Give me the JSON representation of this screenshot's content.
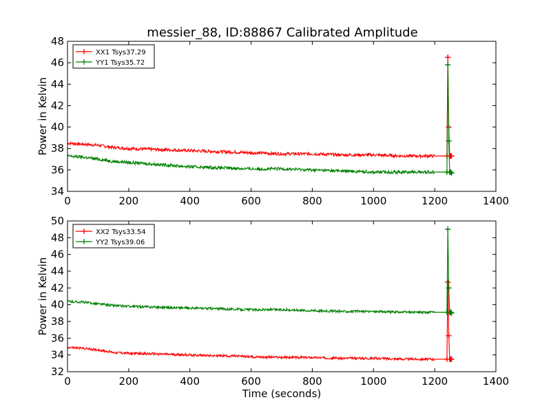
{
  "title": "messier_88, ID:88867 Calibrated Amplitude",
  "chart_data": [
    {
      "type": "line",
      "title": "messier_88, ID:88867 Calibrated Amplitude",
      "xlabel": "",
      "ylabel": "Power in Kelvin",
      "xlim": [
        0,
        1400
      ],
      "ylim": [
        34,
        48
      ],
      "xticks": [
        0,
        200,
        400,
        600,
        800,
        1000,
        1200,
        1400
      ],
      "yticks": [
        34,
        36,
        38,
        40,
        42,
        44,
        46,
        48
      ],
      "grid": false,
      "legend_position": "top-left",
      "series": [
        {
          "name": "XX1 Tsys37.29",
          "color": "#ff0000",
          "x": [
            0,
            50,
            100,
            150,
            200,
            300,
            400,
            500,
            600,
            700,
            800,
            900,
            1000,
            1100,
            1200,
            1240,
            1243,
            1246,
            1249,
            1252,
            1255
          ],
          "y": [
            38.5,
            38.4,
            38.3,
            38.1,
            38.0,
            37.9,
            37.8,
            37.7,
            37.6,
            37.5,
            37.5,
            37.4,
            37.4,
            37.3,
            37.3,
            37.3,
            46.5,
            40.0,
            37.3,
            37.3,
            37.3
          ]
        },
        {
          "name": "YY1 Tsys35.72",
          "color": "#008000",
          "x": [
            0,
            50,
            100,
            150,
            200,
            300,
            400,
            500,
            600,
            700,
            800,
            900,
            1000,
            1100,
            1200,
            1240,
            1243,
            1246,
            1249,
            1252,
            1255
          ],
          "y": [
            37.3,
            37.2,
            37.0,
            36.8,
            36.7,
            36.5,
            36.3,
            36.2,
            36.1,
            36.1,
            36.0,
            35.9,
            35.8,
            35.8,
            35.8,
            35.8,
            45.8,
            38.7,
            35.8,
            35.8,
            35.7
          ]
        }
      ]
    },
    {
      "type": "line",
      "title": "",
      "xlabel": "Time (seconds)",
      "ylabel": "Power in Kelvin",
      "xlim": [
        0,
        1400
      ],
      "ylim": [
        32,
        50
      ],
      "xticks": [
        0,
        200,
        400,
        600,
        800,
        1000,
        1200,
        1400
      ],
      "yticks": [
        32,
        34,
        36,
        38,
        40,
        42,
        44,
        46,
        48,
        50
      ],
      "grid": false,
      "legend_position": "top-left",
      "series": [
        {
          "name": "XX2 Tsys33.54",
          "color": "#ff0000",
          "x": [
            0,
            50,
            100,
            150,
            200,
            300,
            400,
            500,
            600,
            700,
            800,
            900,
            1000,
            1100,
            1200,
            1240,
            1243,
            1246,
            1249,
            1252,
            1255
          ],
          "y": [
            34.9,
            34.8,
            34.6,
            34.3,
            34.2,
            34.1,
            34.0,
            33.9,
            33.8,
            33.7,
            33.7,
            33.6,
            33.6,
            33.5,
            33.5,
            33.5,
            42.7,
            36.3,
            33.5,
            33.5,
            33.5
          ]
        },
        {
          "name": "YY2 Tsys39.06",
          "color": "#008000",
          "x": [
            0,
            50,
            100,
            150,
            200,
            300,
            400,
            500,
            600,
            700,
            800,
            900,
            1000,
            1100,
            1200,
            1240,
            1243,
            1246,
            1249,
            1252,
            1255
          ],
          "y": [
            40.4,
            40.3,
            40.1,
            39.9,
            39.8,
            39.7,
            39.6,
            39.5,
            39.4,
            39.4,
            39.3,
            39.2,
            39.2,
            39.1,
            39.1,
            39.1,
            49.0,
            42.0,
            39.1,
            39.1,
            39.0
          ]
        }
      ]
    }
  ]
}
